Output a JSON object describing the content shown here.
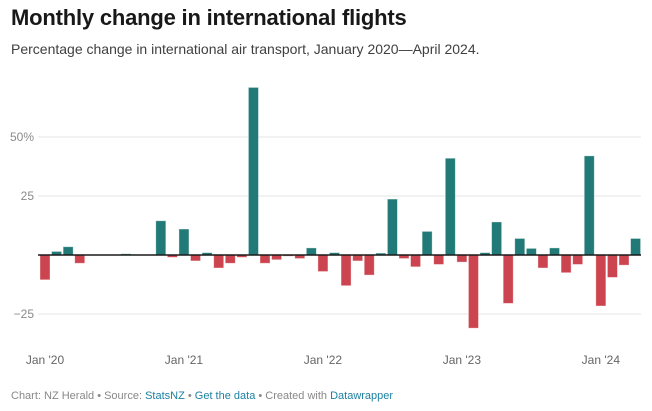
{
  "header": {
    "title": "Monthly change in international flights",
    "subtitle": "Percentage change in international air transport, January 2020—April 2024."
  },
  "footer": {
    "prefix": "Chart: NZ Herald • Source: ",
    "source_link": "StatsNZ",
    "sep1": " • ",
    "data_link": "Get the data",
    "sep2": " • Created with ",
    "tool_link": "Datawrapper"
  },
  "colors": {
    "positive": "#217a77",
    "negative": "#cc444f",
    "grid": "#e6e6e6",
    "zero_line": "#1a1a1a",
    "link": "#1d81a2"
  },
  "chart_data": {
    "type": "bar",
    "title": "Monthly change in international flights",
    "subtitle": "Percentage change in international air transport, January 2020—April 2024.",
    "xlabel": "",
    "ylabel": "",
    "ylim": [
      -30,
      72
    ],
    "grid": true,
    "y_ticks": [
      {
        "value": 50,
        "label": "50%"
      },
      {
        "value": 25,
        "label": "25"
      },
      {
        "value": -25,
        "label": "−25"
      }
    ],
    "x_ticks": [
      {
        "index": 0,
        "label": "Jan '20"
      },
      {
        "index": 12,
        "label": "Jan '21"
      },
      {
        "index": 24,
        "label": "Jan '22"
      },
      {
        "index": 36,
        "label": "Jan '23"
      },
      {
        "index": 48,
        "label": "Jan '24"
      }
    ],
    "categories": [
      "2020-01",
      "2020-02",
      "2020-03",
      "2020-04",
      "2020-05",
      "2020-06",
      "2020-07",
      "2020-08",
      "2020-09",
      "2020-10",
      "2020-11",
      "2020-12",
      "2021-01",
      "2021-02",
      "2021-03",
      "2021-04",
      "2021-05",
      "2021-06",
      "2021-07",
      "2021-08",
      "2021-09",
      "2021-10",
      "2021-11",
      "2021-12",
      "2022-01",
      "2022-02",
      "2022-03",
      "2022-04",
      "2022-05",
      "2022-06",
      "2022-07",
      "2022-08",
      "2022-09",
      "2022-10",
      "2022-11",
      "2022-12",
      "2023-01",
      "2023-02",
      "2023-03",
      "2023-04",
      "2023-05",
      "2023-06",
      "2023-07",
      "2023-08",
      "2023-09",
      "2023-10",
      "2023-11",
      "2023-12",
      "2024-01",
      "2024-02",
      "2024-03",
      "2024-04"
    ],
    "values": [
      -10.5,
      1.5,
      3.5,
      -3.5,
      0,
      0,
      0,
      0.5,
      0,
      0,
      14.5,
      -1,
      11,
      -2.5,
      1,
      -5.5,
      -3.5,
      -1,
      71,
      -3.5,
      -2,
      -0.5,
      -1.5,
      3,
      -7,
      1,
      -13,
      -2.5,
      -8.5,
      0.8,
      23.7,
      -1.5,
      -5,
      10,
      -4,
      41,
      -3,
      -31,
      1,
      14,
      -20.5,
      7,
      2.8,
      -5.5,
      3,
      -7.5,
      -4,
      42,
      -21.6,
      -9.5,
      -4.3,
      7
    ]
  }
}
